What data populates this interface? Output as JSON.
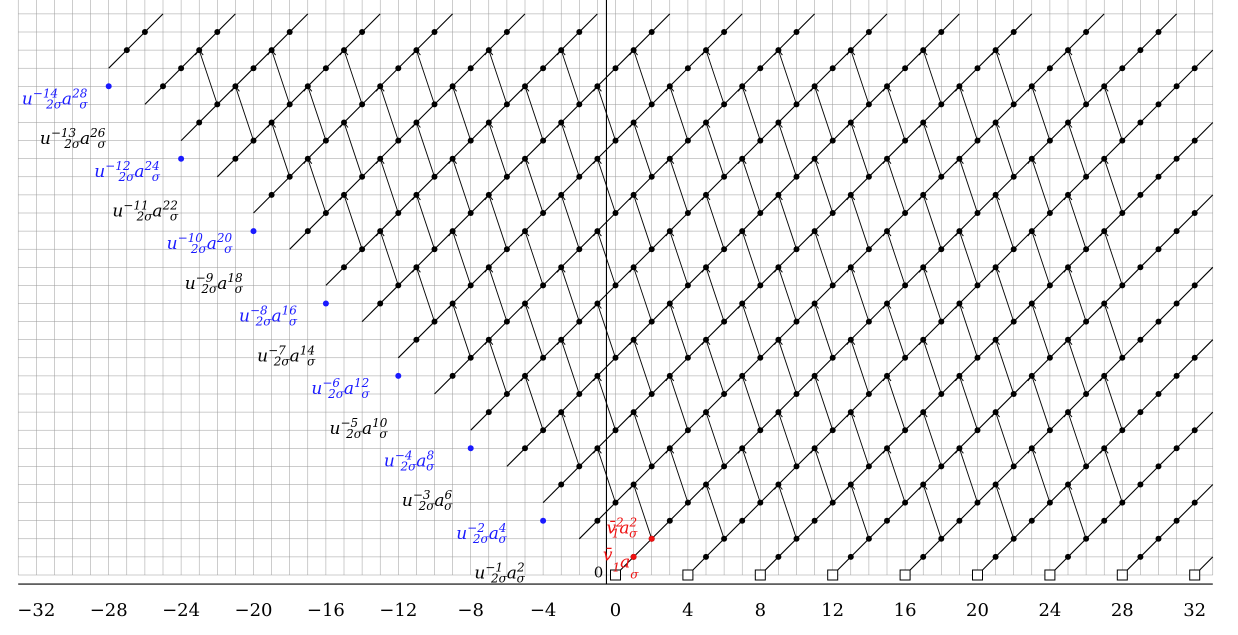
{
  "chart_data": {
    "type": "diagram",
    "x_tick_labels": [
      "−32",
      "−28",
      "−24",
      "−20",
      "−16",
      "−12",
      "−8",
      "−4",
      "0",
      "4",
      "8",
      "12",
      "16",
      "20",
      "24",
      "28",
      "32"
    ],
    "x_ticks": [
      -32,
      -28,
      -24,
      -20,
      -16,
      -12,
      -8,
      -4,
      0,
      4,
      8,
      12,
      16,
      20,
      24,
      28,
      32
    ],
    "x_range": [
      -33,
      33
    ],
    "y_range": [
      0,
      31
    ],
    "origin_label": "0",
    "blue_labels": [
      {
        "base": "u",
        "sub": "2σ",
        "exp": "−2",
        "a_exp": "4"
      },
      {
        "base": "u",
        "sub": "2σ",
        "exp": "−4",
        "a_exp": "8"
      },
      {
        "base": "u",
        "sub": "2σ",
        "exp": "−6",
        "a_exp": "12"
      },
      {
        "base": "u",
        "sub": "2σ",
        "exp": "−8",
        "a_exp": "16"
      },
      {
        "base": "u",
        "sub": "2σ",
        "exp": "−10",
        "a_exp": "20"
      },
      {
        "base": "u",
        "sub": "2σ",
        "exp": "−12",
        "a_exp": "24"
      },
      {
        "base": "u",
        "sub": "2σ",
        "exp": "−14",
        "a_exp": "28"
      }
    ],
    "black_labels": [
      {
        "base": "u",
        "sub": "2σ",
        "exp": "−1",
        "a_exp": "2"
      },
      {
        "base": "u",
        "sub": "2σ",
        "exp": "−3",
        "a_exp": "6"
      },
      {
        "base": "u",
        "sub": "2σ",
        "exp": "−5",
        "a_exp": "10"
      },
      {
        "base": "u",
        "sub": "2σ",
        "exp": "−7",
        "a_exp": "14"
      },
      {
        "base": "u",
        "sub": "2σ",
        "exp": "−9",
        "a_exp": "18"
      },
      {
        "base": "u",
        "sub": "2σ",
        "exp": "−11",
        "a_exp": "22"
      },
      {
        "base": "u",
        "sub": "2σ",
        "exp": "−13",
        "a_exp": "26"
      }
    ],
    "red_labels": [
      {
        "text": "v̄₁a_σ",
        "base": "v̄",
        "sub": "1",
        "exp": "",
        "a_exp": ""
      },
      {
        "text": "v̄₁²a_σ²",
        "base": "v̄",
        "sub": "1",
        "exp": "2",
        "a_exp": "2"
      }
    ],
    "colors": {
      "grid_minor": "#9a9a9a",
      "axis": "#000000",
      "tower": "#000000",
      "blue": "#1a1aff",
      "red": "#ee1111"
    }
  }
}
